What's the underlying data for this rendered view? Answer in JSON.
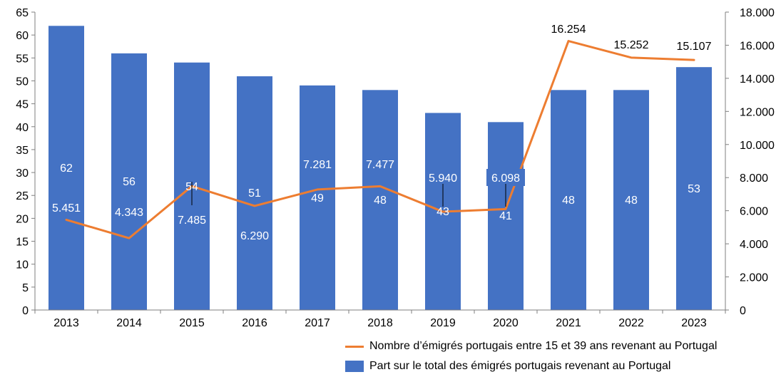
{
  "chart_data": {
    "type": "bar+line",
    "categories": [
      "2013",
      "2014",
      "2015",
      "2016",
      "2017",
      "2018",
      "2019",
      "2020",
      "2021",
      "2022",
      "2023"
    ],
    "series": [
      {
        "name": "Part sur le total des émigrés portugais revenant au Portugal",
        "type": "bar",
        "axis": "left",
        "color": "#4472C4",
        "values": [
          62,
          56,
          54,
          51,
          49,
          48,
          43,
          41,
          48,
          48,
          53
        ],
        "labels": [
          "62",
          "56",
          "54",
          "51",
          "49",
          "48",
          "43",
          "41",
          "48",
          "48",
          "53"
        ]
      },
      {
        "name": "Nombre d’émigrés portugais entre 15 et 39 ans revenant au Portugal",
        "type": "line",
        "axis": "right",
        "color": "#ED7D31",
        "values": [
          5451,
          4343,
          7485,
          6290,
          7281,
          7477,
          5940,
          6098,
          16254,
          15252,
          15107
        ],
        "labels": [
          "5.451",
          "4.343",
          "7.485",
          "6.290",
          "7.281",
          "7.477",
          "5.940",
          "6.098",
          "16.254",
          "15.252",
          "15.107"
        ]
      }
    ],
    "y_left": {
      "min": 0,
      "max": 65,
      "step": 5,
      "tick_labels": [
        "0",
        "5",
        "10",
        "15",
        "20",
        "25",
        "30",
        "35",
        "40",
        "45",
        "50",
        "55",
        "60",
        "65"
      ]
    },
    "y_right": {
      "min": 0,
      "max": 18000,
      "step": 2000,
      "tick_labels": [
        "0",
        "2.000",
        "4.000",
        "6.000",
        "8.000",
        "10.000",
        "12.000",
        "14.000",
        "16.000",
        "18.000"
      ]
    },
    "grid": false,
    "legend_position": "bottom-right",
    "title": "",
    "xlabel": "",
    "ylabel": ""
  }
}
